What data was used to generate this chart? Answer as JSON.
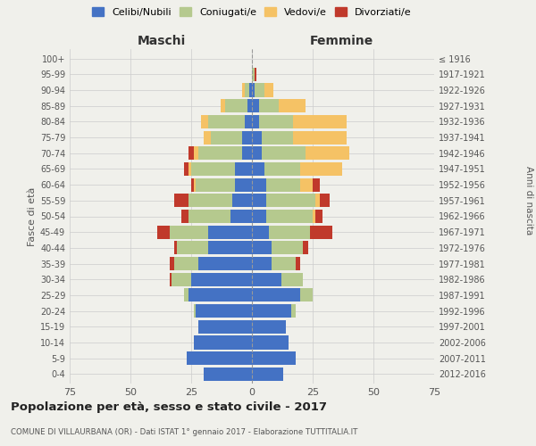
{
  "age_groups": [
    "0-4",
    "5-9",
    "10-14",
    "15-19",
    "20-24",
    "25-29",
    "30-34",
    "35-39",
    "40-44",
    "45-49",
    "50-54",
    "55-59",
    "60-64",
    "65-69",
    "70-74",
    "75-79",
    "80-84",
    "85-89",
    "90-94",
    "95-99",
    "100+"
  ],
  "birth_years": [
    "2012-2016",
    "2007-2011",
    "2002-2006",
    "1997-2001",
    "1992-1996",
    "1987-1991",
    "1982-1986",
    "1977-1981",
    "1972-1976",
    "1967-1971",
    "1962-1966",
    "1957-1961",
    "1952-1956",
    "1947-1951",
    "1942-1946",
    "1937-1941",
    "1932-1936",
    "1927-1931",
    "1922-1926",
    "1917-1921",
    "≤ 1916"
  ],
  "maschi": {
    "celibi": [
      20,
      27,
      24,
      22,
      23,
      26,
      25,
      22,
      18,
      18,
      9,
      8,
      7,
      7,
      4,
      4,
      3,
      2,
      1,
      0,
      0
    ],
    "coniugati": [
      0,
      0,
      0,
      0,
      1,
      2,
      8,
      10,
      13,
      16,
      17,
      18,
      16,
      18,
      18,
      13,
      15,
      9,
      2,
      0,
      0
    ],
    "vedovi": [
      0,
      0,
      0,
      0,
      0,
      0,
      0,
      0,
      0,
      0,
      0,
      0,
      1,
      1,
      2,
      3,
      3,
      2,
      1,
      0,
      0
    ],
    "divorziati": [
      0,
      0,
      0,
      0,
      0,
      0,
      1,
      2,
      1,
      5,
      3,
      6,
      1,
      2,
      2,
      0,
      0,
      0,
      0,
      0,
      0
    ]
  },
  "femmine": {
    "nubili": [
      13,
      18,
      15,
      14,
      16,
      20,
      12,
      8,
      8,
      7,
      6,
      6,
      6,
      5,
      4,
      4,
      3,
      3,
      1,
      0,
      0
    ],
    "coniugate": [
      0,
      0,
      0,
      0,
      2,
      5,
      9,
      10,
      13,
      17,
      19,
      20,
      14,
      15,
      18,
      13,
      14,
      8,
      4,
      1,
      0
    ],
    "vedove": [
      0,
      0,
      0,
      0,
      0,
      0,
      0,
      0,
      0,
      0,
      1,
      2,
      5,
      17,
      18,
      22,
      22,
      11,
      4,
      0,
      0
    ],
    "divorziate": [
      0,
      0,
      0,
      0,
      0,
      0,
      0,
      2,
      2,
      9,
      3,
      4,
      3,
      0,
      0,
      0,
      0,
      0,
      0,
      1,
      0
    ]
  },
  "colors": {
    "celibi": "#4472c4",
    "coniugati": "#b5c98e",
    "vedovi": "#f5c265",
    "divorziati": "#c0392b"
  },
  "xlim": 75,
  "title": "Popolazione per età, sesso e stato civile - 2017",
  "subtitle": "COMUNE DI VILLAURBANA (OR) - Dati ISTAT 1° gennaio 2017 - Elaborazione TUTTITALIA.IT",
  "xlabel_left": "Maschi",
  "xlabel_right": "Femmine",
  "ylabel_left": "Fasce di età",
  "ylabel_right": "Anni di nascita",
  "bg_color": "#f0f0eb",
  "grid_color": "#cccccc"
}
